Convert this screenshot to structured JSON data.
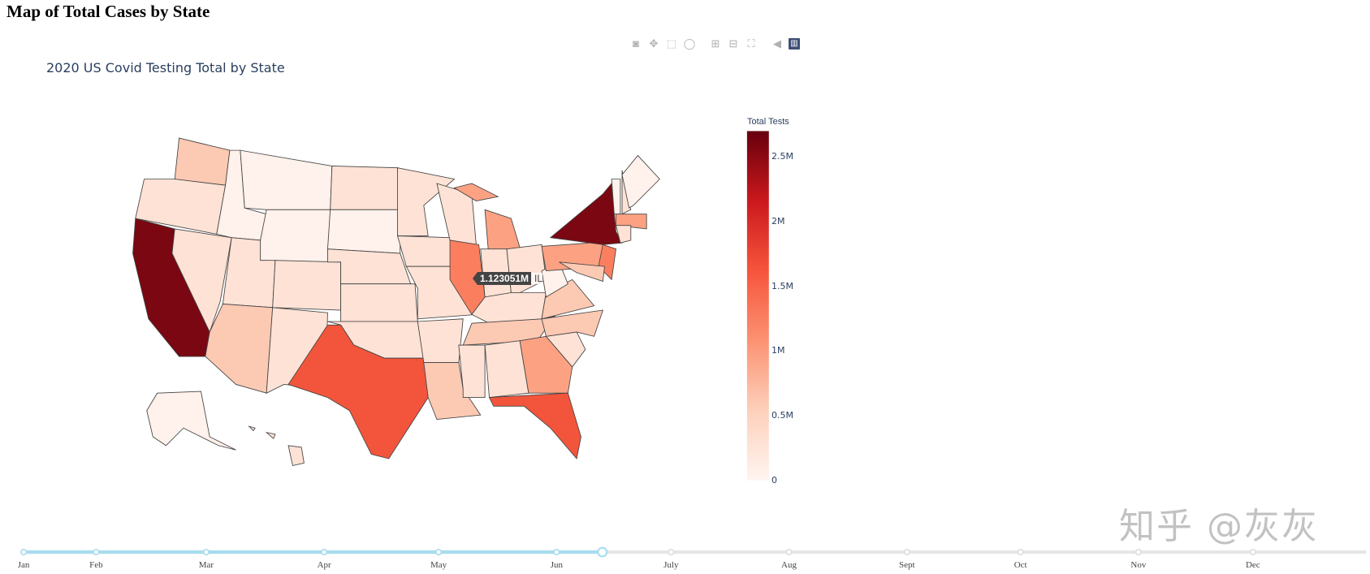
{
  "heading": "Map of Total Cases by State",
  "plot_title": "2020 US Covid Testing Total by State",
  "modebar": [
    {
      "name": "camera-icon",
      "glyph": "◙"
    },
    {
      "name": "pan-icon",
      "glyph": "✥"
    },
    {
      "name": "box-select-icon",
      "glyph": "⬚"
    },
    {
      "name": "lasso-icon",
      "glyph": "◯"
    },
    {
      "name": "zoom-in-icon",
      "glyph": "⊞"
    },
    {
      "name": "zoom-out-icon",
      "glyph": "⊟"
    },
    {
      "name": "reset-icon",
      "glyph": "⛶"
    },
    {
      "name": "hover-icon",
      "glyph": "◀"
    },
    {
      "name": "plotly-logo-icon",
      "glyph": "▥"
    }
  ],
  "colorbar": {
    "title": "Total Tests",
    "ticks": [
      "2.5M",
      "2M",
      "1.5M",
      "1M",
      "0.5M",
      "0"
    ],
    "tick_values": [
      2500000,
      2000000,
      1500000,
      1000000,
      500000,
      0
    ],
    "max": 2700000,
    "colors": [
      "#fff5f0",
      "#fdd0bb",
      "#fc9272",
      "#f6553c",
      "#cb181d",
      "#67000d"
    ]
  },
  "tooltip": {
    "value": "1.123051M",
    "state": "IL"
  },
  "map": {
    "colors": {
      "0": "#fff1eb",
      "1": "#fee2d5",
      "2": "#fcc9b3",
      "3": "#fca283",
      "4": "#fb7f5f",
      "5": "#f2553b",
      "6": "#7a0711"
    }
  },
  "slider": {
    "labels": [
      "Jan",
      "Feb",
      "Mar",
      "Apr",
      "May",
      "Jun",
      "July",
      "Aug",
      "Sept",
      "Oct",
      "Nov",
      "Dec"
    ],
    "active_index": 5.4,
    "active_color": "#a8dcee"
  },
  "watermark": "知乎 @灰灰"
}
